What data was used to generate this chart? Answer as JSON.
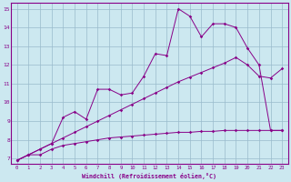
{
  "xlabel": "Windchill (Refroidissement éolien,°C)",
  "bg_color": "#cce8f0",
  "line_color": "#880088",
  "grid_color": "#99bbcc",
  "xlim": [
    -0.5,
    23.5
  ],
  "ylim": [
    6.7,
    15.3
  ],
  "xticks": [
    0,
    1,
    2,
    3,
    4,
    5,
    6,
    7,
    8,
    9,
    10,
    11,
    12,
    13,
    14,
    15,
    16,
    17,
    18,
    19,
    20,
    21,
    22,
    23
  ],
  "yticks": [
    7,
    8,
    9,
    10,
    11,
    12,
    13,
    14,
    15
  ],
  "line1_x": [
    0,
    1,
    2,
    3,
    4,
    5,
    6,
    7,
    8,
    9,
    10,
    11,
    12,
    13,
    14,
    15,
    16,
    17,
    18,
    19,
    20,
    21,
    22,
    23
  ],
  "line1_y": [
    6.9,
    7.2,
    7.2,
    7.5,
    7.7,
    7.8,
    7.9,
    8.0,
    8.1,
    8.15,
    8.2,
    8.25,
    8.3,
    8.35,
    8.4,
    8.4,
    8.45,
    8.45,
    8.5,
    8.5,
    8.5,
    8.5,
    8.5,
    8.5
  ],
  "line2_x": [
    0,
    1,
    2,
    3,
    4,
    5,
    6,
    7,
    8,
    9,
    10,
    11,
    12,
    13,
    14,
    15,
    16,
    17,
    18,
    19,
    20,
    21,
    22,
    23
  ],
  "line2_y": [
    6.9,
    7.2,
    7.5,
    7.8,
    8.1,
    8.4,
    8.7,
    9.0,
    9.3,
    9.6,
    9.9,
    10.2,
    10.5,
    10.8,
    11.1,
    11.35,
    11.6,
    11.85,
    12.1,
    12.4,
    12.0,
    11.4,
    11.3,
    11.8
  ],
  "line3_x": [
    0,
    1,
    2,
    3,
    4,
    5,
    6,
    7,
    8,
    9,
    10,
    11,
    12,
    13,
    14,
    15,
    16,
    17,
    18,
    19,
    20,
    21,
    22,
    23
  ],
  "line3_y": [
    6.9,
    7.2,
    7.5,
    7.8,
    9.2,
    9.5,
    9.1,
    10.7,
    10.7,
    10.4,
    10.5,
    11.4,
    12.6,
    12.5,
    15.0,
    14.6,
    13.5,
    14.2,
    14.2,
    14.0,
    12.9,
    12.0,
    8.5,
    8.5
  ]
}
